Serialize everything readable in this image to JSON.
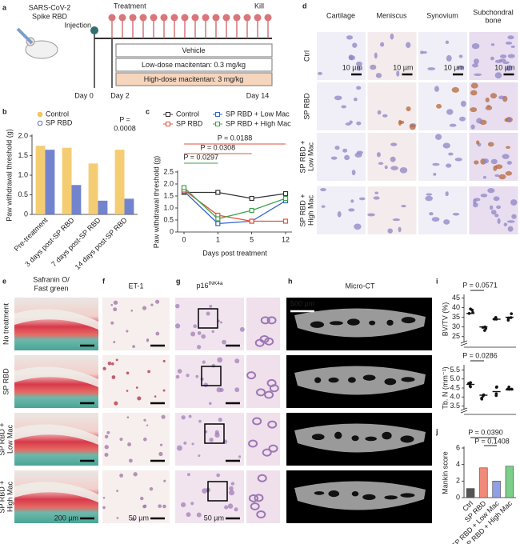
{
  "panels": {
    "letters": [
      "a",
      "b",
      "c",
      "d",
      "e",
      "f",
      "g",
      "h",
      "i",
      "j"
    ],
    "a": {
      "agent": [
        "SARS-CoV-2",
        "Spike RBD"
      ],
      "injection": "Injection",
      "treatment": "Treatment",
      "kill": "Kill",
      "groups": [
        "Vehicle",
        "Low-dose macitentan: 0.3 mg/kg",
        "High-dose macitentan: 3 mg/kg"
      ],
      "days": [
        "Day 0",
        "Day 2",
        "Day 14"
      ]
    },
    "d": {
      "columns": [
        [
          "Cartilage"
        ],
        [
          "Meniscus"
        ],
        [
          "Synovium"
        ],
        [
          "Subchondral",
          "bone"
        ]
      ],
      "rows": [
        [
          "Ctrl"
        ],
        [
          "SP RBD"
        ],
        [
          "SP RBD +",
          "Low Mac"
        ],
        [
          "SP RBD +",
          "High Mac"
        ]
      ],
      "scale_bar": "10 µm"
    },
    "histology": {
      "titles": [
        [
          "Safranin O/",
          "Fast green"
        ],
        [
          "ET-1"
        ],
        [
          "p16"
        ],
        [
          "Micro-CT"
        ]
      ],
      "title_superscript": "INK4a",
      "rows": [
        [
          "No treatment"
        ],
        [
          "SP RBD"
        ],
        [
          "SP RBD +",
          "Low Mac"
        ],
        [
          "SP RBD +",
          "High Mac"
        ]
      ],
      "scale_bars": [
        "200 µm",
        "50 µm",
        "50 µm",
        "500 µm"
      ]
    }
  },
  "chart_data": [
    {
      "type": "bar",
      "ylabel": "Paw withdrawal threshold (g)",
      "categories": [
        "Pre-treatment",
        "3 days post-SP RBD",
        "7 days post-SP RBD",
        "14 days post-SP RBD"
      ],
      "series": [
        {
          "name": "Control",
          "color": "#f2c45a",
          "values": [
            1.75,
            1.7,
            1.3,
            1.65
          ]
        },
        {
          "name": "SP RBD",
          "color": "#5b6fc6",
          "values": [
            1.65,
            0.75,
            0.35,
            0.4
          ]
        }
      ],
      "ylim": [
        0,
        2
      ],
      "yticks": [
        0,
        0.5,
        {
          "value": 1,
          "label": "1.0"
        },
        1.5,
        {
          "value": 2,
          "label": "2.0"
        }
      ],
      "annotation": [
        "P =",
        "0.0008"
      ]
    },
    {
      "type": "line",
      "xlabel": "Days post treatment",
      "ylabel": "Paw withdrawal threshold (g)",
      "categories": [
        "0",
        "1",
        "5",
        "12"
      ],
      "series": [
        {
          "name": "Control",
          "color": "#333333",
          "values": [
            1.65,
            1.65,
            1.4,
            1.6
          ]
        },
        {
          "name": "SP RBD + Low Mac",
          "color": "#3565c9",
          "values": [
            1.7,
            0.35,
            0.45,
            1.3
          ]
        },
        {
          "name": "SP RBD",
          "color": "#e0533d",
          "values": [
            1.75,
            0.7,
            0.45,
            0.45
          ]
        },
        {
          "name": "SP RBD + High Mac",
          "color": "#3fa34d",
          "values": [
            1.85,
            0.55,
            0.9,
            1.4
          ]
        }
      ],
      "ylim": [
        0,
        2.5
      ],
      "yticks": [
        0,
        0.5,
        {
          "value": 1,
          "label": "1.0"
        },
        1.5,
        {
          "value": 2,
          "label": "2.0"
        },
        2.5
      ],
      "annotations": [
        {
          "text": "P = 0.0188",
          "color": "#e0533d"
        },
        {
          "text": "P = 0.0308",
          "color": "#e0533d"
        },
        {
          "text": "P = 0.0297",
          "color": "#3fa34d"
        }
      ]
    },
    {
      "type": "dot",
      "ylabel": "BV/TV (%)",
      "values": [
        37,
        30,
        34,
        35
      ],
      "ylim": [
        22,
        46
      ],
      "yticks": [
        25,
        30,
        35,
        40,
        45
      ],
      "annotations": [
        "P = 0.0571"
      ]
    },
    {
      "type": "dot",
      "ylabel": "Tb. N (mm⁻¹)",
      "values": [
        4.7,
        4.1,
        4.3,
        4.4
      ],
      "ylim": [
        3.3,
        5.7
      ],
      "yticks": [
        3.5,
        {
          "value": 4,
          "label": "4.0"
        },
        4.5,
        {
          "value": 5,
          "label": "5.0"
        },
        5.5
      ],
      "annotations": [
        "P = 0.0286"
      ]
    },
    {
      "type": "bar",
      "ylabel": "Mankin score",
      "categories": [
        "Ctrl",
        "SP RBD",
        "SP RBD + Low Mac",
        "SP RBD + High Mac"
      ],
      "colors": [
        "#555555",
        "#f08b7a",
        "#8f9fe8",
        "#7ccf8a"
      ],
      "values": [
        1.1,
        3.6,
        2.0,
        3.8
      ],
      "ylim": [
        0,
        6
      ],
      "yticks": [
        0,
        2,
        4,
        6
      ],
      "annotations": [
        "P = 0.0390",
        "P = 0.1408"
      ]
    }
  ]
}
